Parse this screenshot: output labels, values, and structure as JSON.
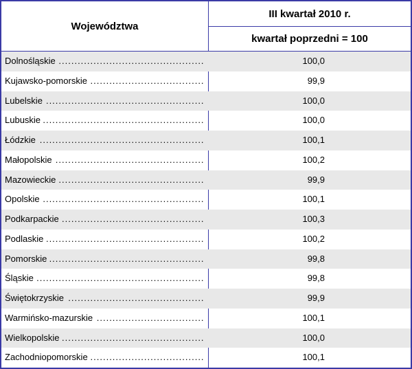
{
  "header": {
    "region_col": "Województwa",
    "period": "III kwartał 2010 r.",
    "base": "kwartał poprzedni = 100"
  },
  "rows": [
    {
      "region": "Dolnośląskie",
      "value": "100,0"
    },
    {
      "region": "Kujawsko-pomorskie",
      "value": "99,9"
    },
    {
      "region": "Lubelskie",
      "value": "100,0"
    },
    {
      "region": "Lubuskie",
      "value": "100,0"
    },
    {
      "region": "Łódzkie",
      "value": "100,1"
    },
    {
      "region": "Małopolskie",
      "value": "100,2"
    },
    {
      "region": "Mazowieckie",
      "value": "99,9"
    },
    {
      "region": "Opolskie",
      "value": "100,1"
    },
    {
      "region": "Podkarpackie",
      "value": "100,3"
    },
    {
      "region": "Podlaskie",
      "value": "100,2"
    },
    {
      "region": "Pomorskie",
      "value": "99,8"
    },
    {
      "region": "Śląskie",
      "value": "99,8"
    },
    {
      "region": "Świętokrzyskie",
      "value": "99,9"
    },
    {
      "region": "Warmińsko-mazurskie",
      "value": "100,1"
    },
    {
      "region": "Wielkopolskie",
      "value": "100,0"
    },
    {
      "region": "Zachodniopomorskie",
      "value": "100,1"
    }
  ],
  "colors": {
    "border": "#3a3aa6",
    "shade": "#e8e8e8"
  }
}
